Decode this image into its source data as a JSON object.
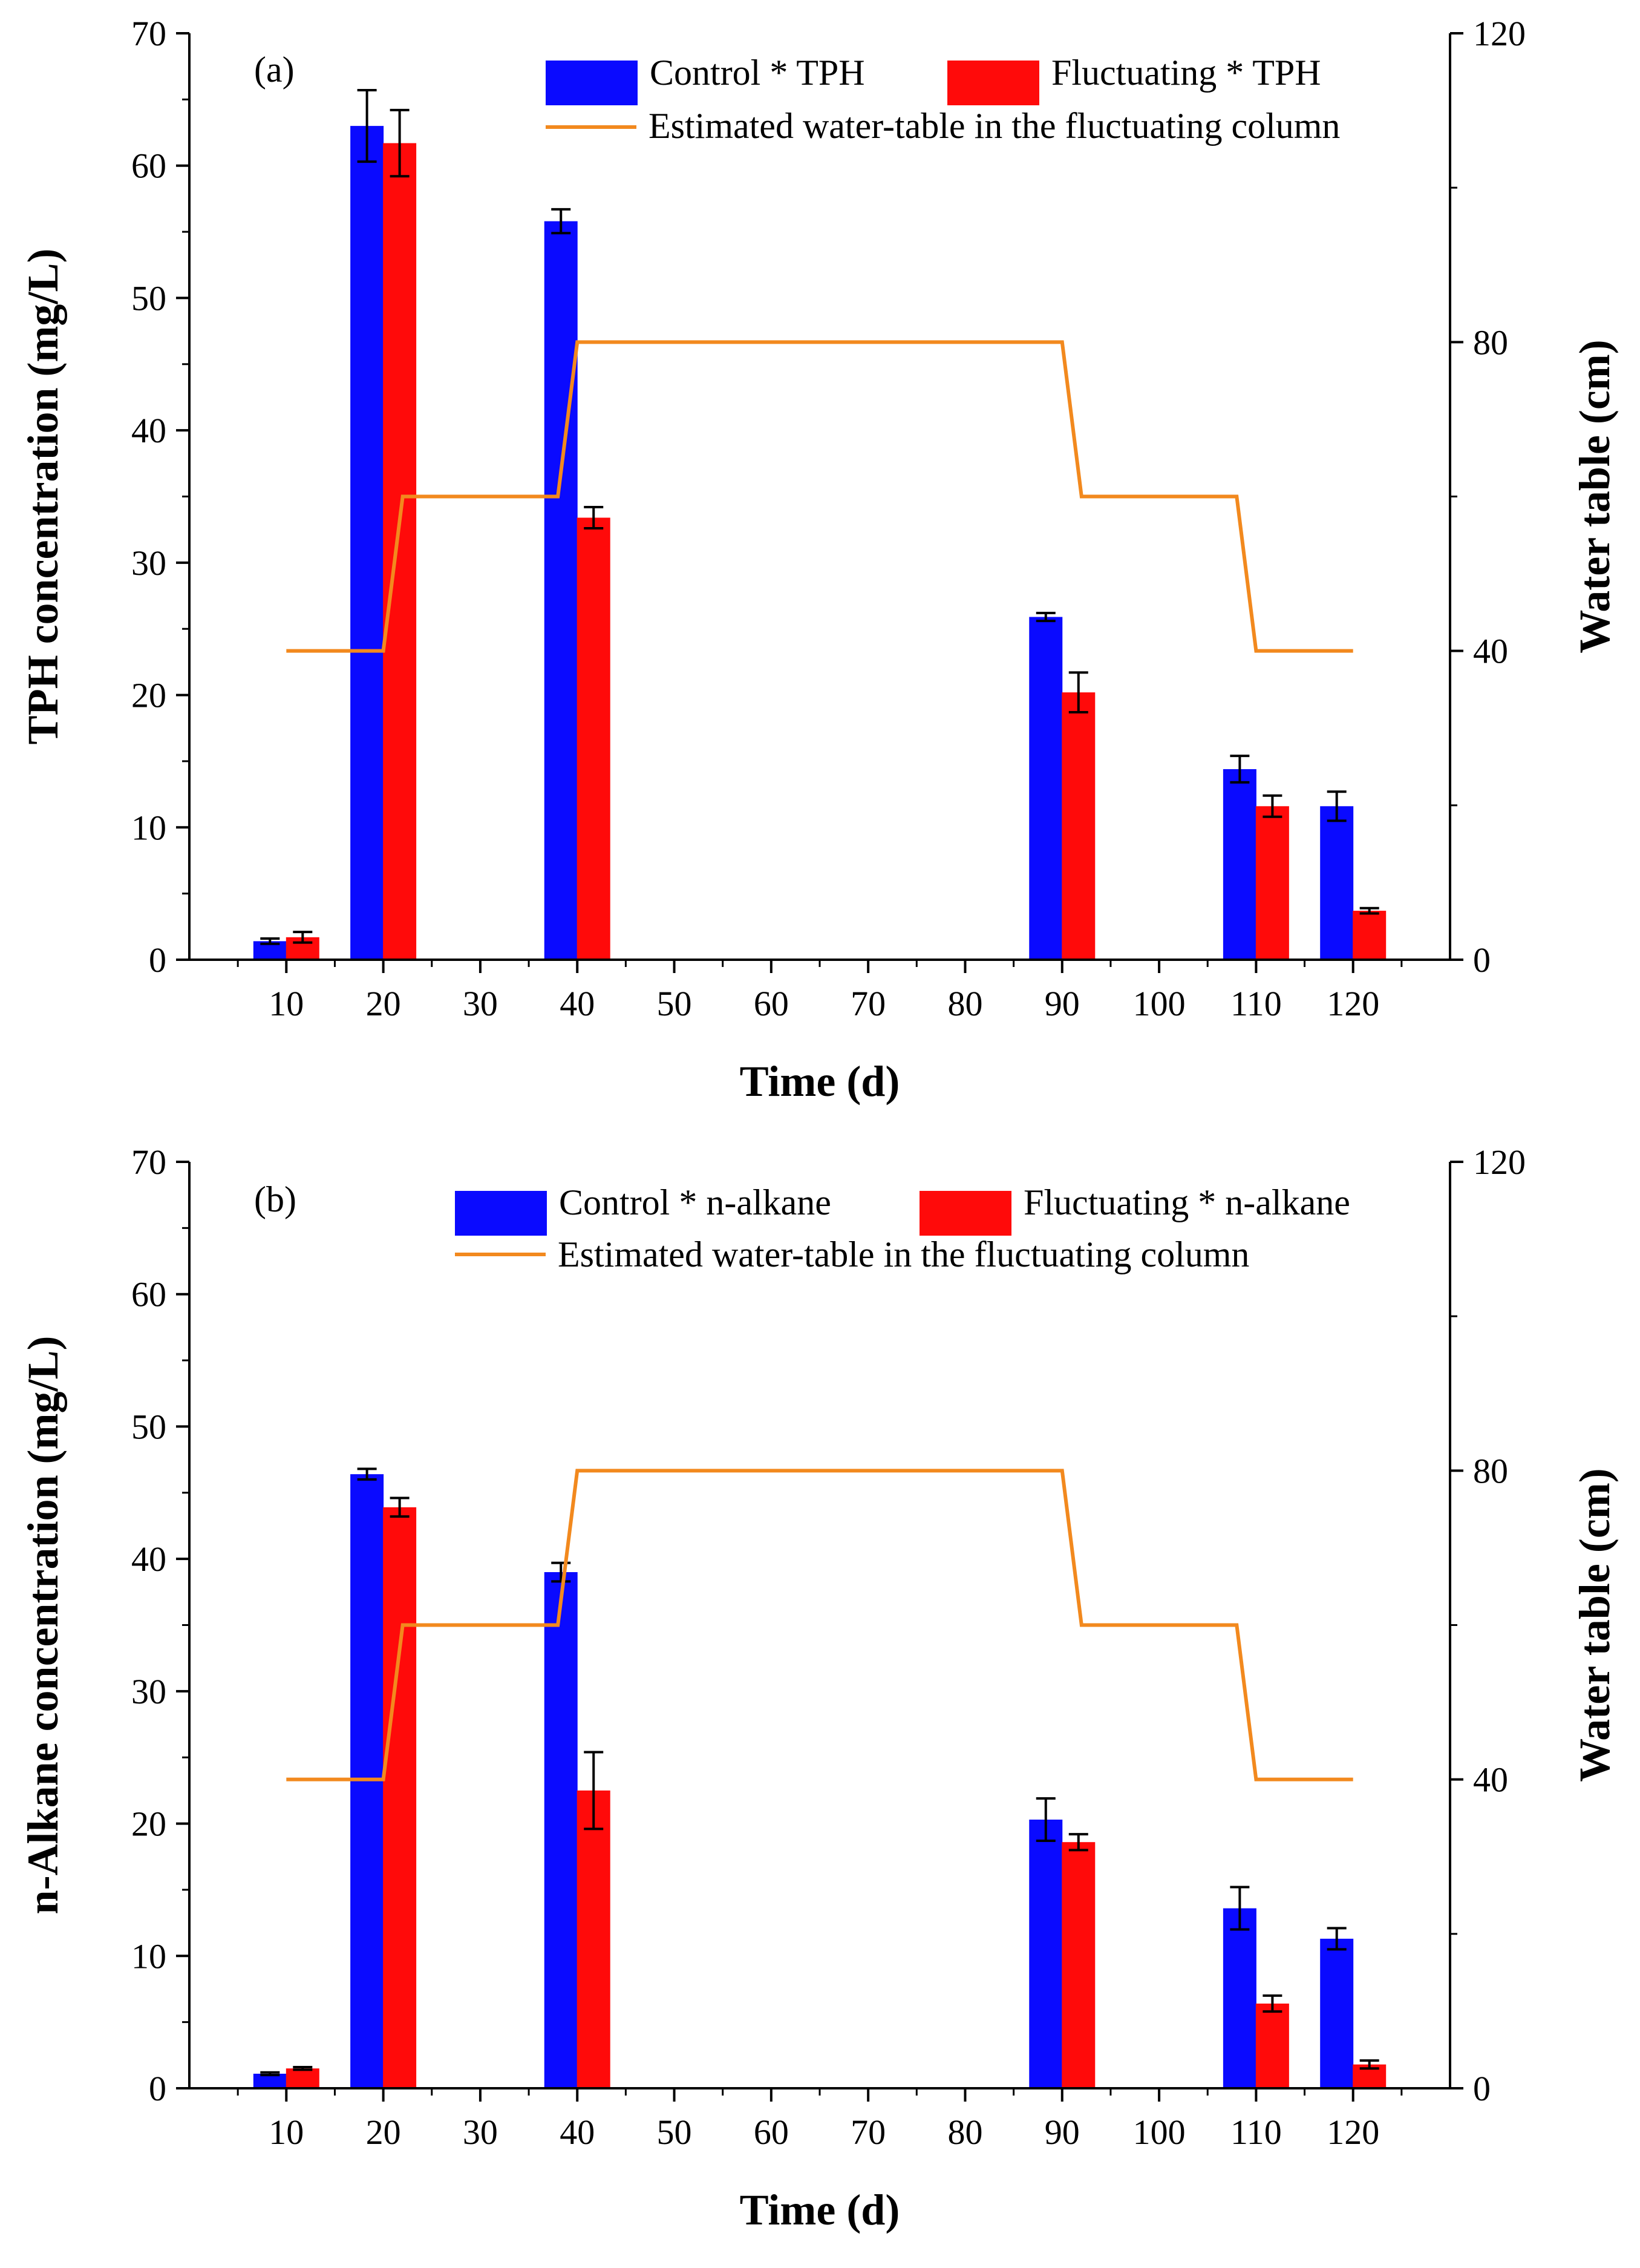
{
  "colors": {
    "control": "#0a0aff",
    "fluctuating": "#ff0a0a",
    "water_table": "#f2891e",
    "axis": "#000000"
  },
  "chart_data": [
    {
      "type": "bar",
      "panel_label": "(a)",
      "xlabel": "Time (d)",
      "ylabel": "TPH concentration (mg/L)",
      "y2label": "Water table (cm)",
      "ylim": [
        0,
        70
      ],
      "y2lim": [
        0,
        120
      ],
      "x_ticks": [
        10,
        20,
        30,
        40,
        50,
        60,
        70,
        80,
        90,
        100,
        110,
        120
      ],
      "y_ticks": [
        0,
        10,
        20,
        30,
        40,
        50,
        60,
        70
      ],
      "y2_ticks": [
        0,
        40,
        80,
        120
      ],
      "legend_position": "top-right",
      "series": [
        {
          "name": "Control * TPH",
          "color": "control",
          "x": [
            10,
            20,
            40,
            90,
            110,
            120
          ],
          "values": [
            1.4,
            63.0,
            55.8,
            25.9,
            14.4,
            11.6
          ],
          "errors": [
            0.2,
            2.7,
            0.9,
            0.3,
            1.0,
            1.1
          ]
        },
        {
          "name": "Fluctuating * TPH",
          "color": "fluctuating",
          "x": [
            10,
            20,
            40,
            90,
            110,
            120
          ],
          "values": [
            1.7,
            61.7,
            33.4,
            20.2,
            11.6,
            3.7
          ],
          "errors": [
            0.4,
            2.5,
            0.8,
            1.5,
            0.8,
            0.2
          ]
        }
      ],
      "line": {
        "name": "Estimated water-table in the fluctuating column",
        "color": "water_table",
        "points": [
          [
            10,
            40
          ],
          [
            20,
            40
          ],
          [
            22,
            60
          ],
          [
            38,
            60
          ],
          [
            40,
            80
          ],
          [
            90,
            80
          ],
          [
            92,
            60
          ],
          [
            108,
            60
          ],
          [
            110,
            40
          ],
          [
            120,
            40
          ]
        ]
      }
    },
    {
      "type": "bar",
      "panel_label": "(b)",
      "xlabel": "Time (d)",
      "ylabel": "n-Alkane concentration (mg/L)",
      "y2label": "Water table (cm)",
      "ylim": [
        0,
        70
      ],
      "y2lim": [
        0,
        120
      ],
      "x_ticks": [
        10,
        20,
        30,
        40,
        50,
        60,
        70,
        80,
        90,
        100,
        110,
        120
      ],
      "y_ticks": [
        0,
        10,
        20,
        30,
        40,
        50,
        60,
        70
      ],
      "y2_ticks": [
        0,
        40,
        80,
        120
      ],
      "legend_position": "top-right",
      "series": [
        {
          "name": "Control * n-alkane",
          "color": "control",
          "x": [
            10,
            20,
            40,
            90,
            110,
            120
          ],
          "values": [
            1.1,
            46.4,
            39.0,
            20.3,
            13.6,
            11.3
          ],
          "errors": [
            0.1,
            0.4,
            0.7,
            1.6,
            1.6,
            0.8
          ]
        },
        {
          "name": "Fluctuating * n-alkane",
          "color": "fluctuating",
          "x": [
            10,
            20,
            40,
            90,
            110,
            120
          ],
          "values": [
            1.5,
            43.9,
            22.5,
            18.6,
            6.4,
            1.8
          ],
          "errors": [
            0.1,
            0.7,
            2.9,
            0.6,
            0.6,
            0.3
          ]
        }
      ],
      "line": {
        "name": "Estimated water-table in the fluctuating column",
        "color": "water_table",
        "points": [
          [
            10,
            40
          ],
          [
            20,
            40
          ],
          [
            22,
            60
          ],
          [
            38,
            60
          ],
          [
            40,
            80
          ],
          [
            90,
            80
          ],
          [
            92,
            60
          ],
          [
            108,
            60
          ],
          [
            110,
            40
          ],
          [
            120,
            40
          ]
        ]
      }
    }
  ]
}
